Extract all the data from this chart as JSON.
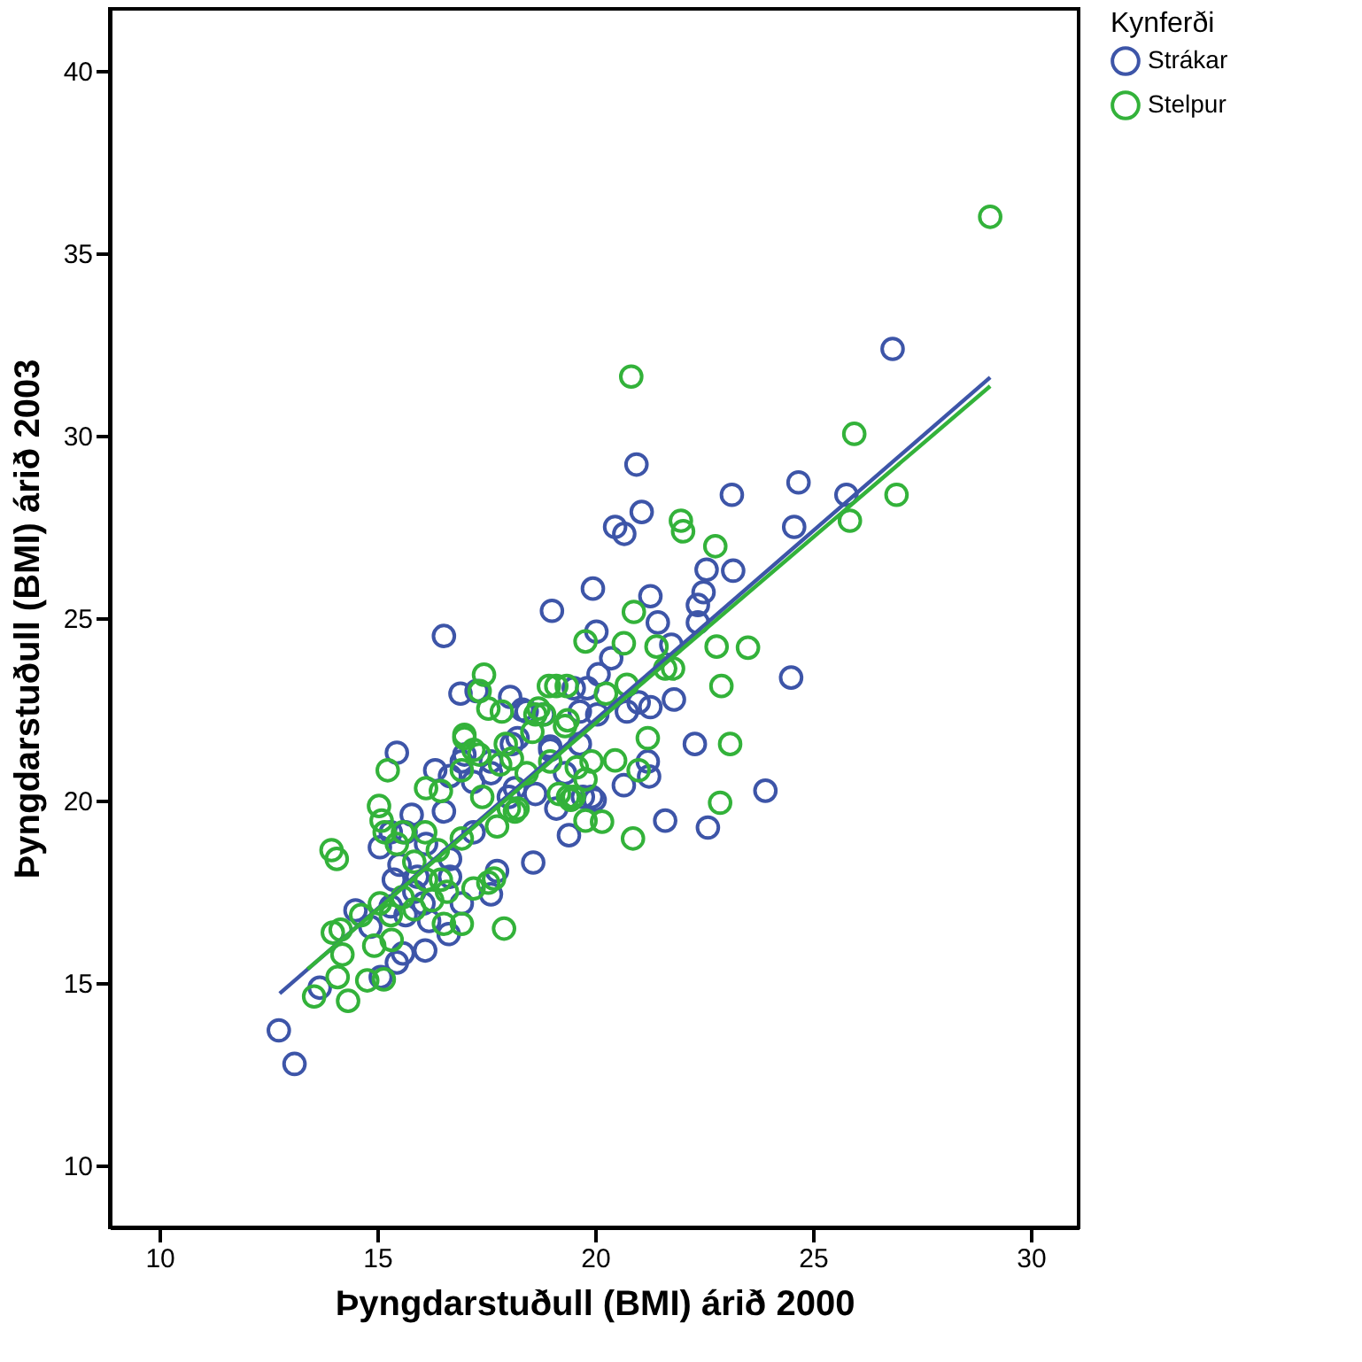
{
  "chart_data": {
    "type": "scatter",
    "xlabel": "Þyngdarstuðull (BMI) árið 2000",
    "ylabel": "Þyngdarstuðull (BMI) árið 2003",
    "legend_title": "Kynferði",
    "legend": "top right",
    "marker": "circle",
    "grid": false,
    "xlim": [
      8.86,
      31.1
    ],
    "ylim": [
      8.3,
      41.7
    ],
    "xticks": [
      10,
      15,
      20,
      25,
      30
    ],
    "yticks": [
      10,
      15,
      20,
      25,
      30,
      35,
      40
    ],
    "series": [
      {
        "name": "Strákar",
        "color": "#3d55a8",
        "x": [
          12.74,
          13.1,
          13.68,
          14.5,
          15.08,
          15.45,
          15.59,
          16.1,
          16.64,
          14.84,
          15.31,
          15.65,
          16.94,
          17.61,
          17.75,
          18.58,
          15.06,
          15.31,
          15.38,
          15.51,
          15.45,
          15.79,
          16.33,
          16.53,
          16.67,
          16.91,
          17.0,
          17.2,
          17.61,
          18.09,
          18.16,
          18.63,
          17.21,
          16.67,
          16.12,
          15.92,
          16.67,
          18.05,
          18.43,
          19.65,
          18.97,
          19.31,
          15.65,
          15.85,
          16.06,
          16.19,
          16.94,
          17.61,
          18.22,
          18.97,
          19.65,
          20.05,
          20.73,
          18.02,
          19.11,
          19.99,
          20.95,
          21.07,
          20.46,
          20.67,
          23.14,
          24.67,
          24.57,
          25.77,
          22.56,
          23.17,
          19.95,
          21.27,
          22.49,
          22.36,
          19.01,
          21.44,
          22.36,
          16.53,
          20.03,
          21.75,
          20.37,
          20.08,
          24.5,
          17.28,
          19.51,
          19.82,
          21.0,
          21.27,
          21.81,
          22.29,
          23.91,
          21.61,
          22.59,
          18.33,
          18.81,
          21.21,
          21.24,
          20.66,
          19.92,
          19.72,
          19.4,
          26.83
        ],
        "values": [
          13.7,
          12.78,
          14.87,
          16.99,
          15.16,
          15.56,
          15.81,
          15.89,
          16.34,
          16.54,
          17.1,
          16.86,
          17.18,
          17.43,
          18.07,
          18.3,
          18.72,
          19.13,
          17.83,
          18.24,
          21.31,
          19.61,
          20.83,
          19.7,
          20.67,
          22.93,
          21.26,
          20.51,
          20.75,
          21.55,
          20.34,
          20.18,
          19.13,
          18.4,
          18.81,
          17.91,
          17.91,
          22.84,
          22.44,
          22.44,
          21.48,
          20.75,
          19.13,
          17.5,
          17.18,
          16.7,
          21.07,
          21.07,
          21.71,
          21.39,
          21.55,
          22.36,
          22.44,
          20.1,
          19.78,
          20.02,
          29.21,
          27.91,
          27.5,
          27.31,
          28.38,
          28.72,
          27.5,
          28.38,
          26.33,
          26.3,
          25.81,
          25.6,
          25.71,
          25.36,
          25.2,
          24.88,
          24.88,
          24.51,
          24.63,
          24.27,
          23.9,
          23.46,
          23.37,
          23.0,
          23.08,
          23.08,
          22.69,
          22.56,
          22.77,
          21.55,
          20.27,
          19.45,
          19.26,
          22.49,
          22.36,
          21.07,
          20.66,
          20.42,
          20.1,
          20.1,
          19.05,
          32.38
        ]
      },
      {
        "name": "Stelpur",
        "color": "#33b23a",
        "x": [
          13.55,
          14.33,
          14.09,
          14.2,
          13.98,
          14.16,
          14.77,
          15.15,
          14.93,
          15.33,
          17.91,
          14.63,
          15.06,
          15.85,
          16.26,
          16.6,
          17.68,
          13.95,
          14.07,
          15.17,
          15.04,
          15.1,
          15.24,
          15.59,
          16.1,
          16.46,
          17.0,
          17.35,
          17.34,
          16.94,
          17.41,
          17.82,
          18.43,
          18.02,
          17.75,
          16.94,
          16.39,
          16.12,
          16.46,
          17.21,
          17.55,
          18.16,
          19.17,
          19.44,
          19.37,
          18.83,
          18.56,
          18.97,
          18.09,
          19.58,
          19.78,
          15.45,
          15.85,
          15.58,
          15.31,
          16.53,
          16.94,
          16.12,
          17.21,
          17.95,
          18.63,
          19.31,
          19.92,
          18.22,
          19.51,
          20.83,
          21.97,
          22.02,
          25.95,
          25.85,
          22.76,
          20.89,
          19.78,
          20.66,
          21.41,
          22.79,
          23.51,
          21.61,
          21.79,
          22.9,
          17.45,
          18.94,
          19.11,
          19.35,
          20.25,
          20.73,
          23.1,
          22.87,
          20.87,
          17.55,
          17.86,
          18.7,
          21.21,
          21.0,
          20.46,
          19.38,
          20.16,
          19.78,
          17.0,
          29.07,
          26.92
        ],
        "values": [
          14.63,
          14.51,
          15.16,
          15.78,
          16.38,
          16.46,
          15.07,
          15.1,
          16.02,
          16.18,
          16.49,
          16.86,
          17.18,
          17.02,
          17.27,
          17.5,
          17.86,
          18.64,
          18.4,
          19.13,
          19.85,
          19.45,
          20.83,
          19.13,
          19.13,
          20.26,
          21.8,
          23.0,
          21.26,
          20.83,
          20.1,
          20.99,
          20.75,
          19.78,
          19.29,
          18.96,
          18.64,
          17.83,
          17.83,
          17.59,
          17.75,
          19.7,
          20.18,
          20.02,
          22.2,
          22.36,
          21.88,
          21.07,
          21.15,
          20.91,
          20.58,
          18.81,
          18.32,
          17.35,
          16.86,
          16.62,
          16.62,
          20.34,
          21.39,
          21.55,
          22.36,
          22.04,
          21.07,
          19.78,
          20.1,
          31.62,
          27.67,
          27.38,
          30.05,
          27.67,
          26.97,
          25.17,
          24.36,
          24.31,
          24.22,
          24.22,
          24.19,
          23.62,
          23.62,
          23.14,
          23.45,
          23.14,
          23.14,
          23.14,
          22.93,
          23.17,
          21.55,
          19.94,
          18.96,
          22.52,
          22.44,
          22.52,
          21.71,
          20.83,
          21.1,
          20.1,
          19.42,
          19.45,
          21.71,
          36.0,
          28.38
        ]
      },
      {
        "type": "line",
        "marker": "none",
        "line_style": "solid",
        "color": "#3d55a8",
        "x": [
          12.76,
          29.07
        ],
        "values": [
          14.71,
          31.6
        ]
      },
      {
        "type": "line",
        "marker": "none",
        "line_style": "solid",
        "color": "#33b23a",
        "x": [
          13.4,
          29.07
        ],
        "values": [
          15.38,
          31.36
        ]
      }
    ]
  }
}
